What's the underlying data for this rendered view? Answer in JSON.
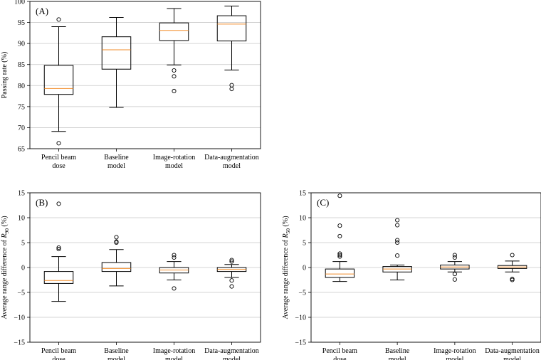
{
  "chart_data": [
    {
      "type": "box",
      "panel_label": "(A)",
      "ylabel": "Passing rate (%)",
      "ylim": [
        65,
        100
      ],
      "yticks": [
        65,
        70,
        75,
        80,
        85,
        90,
        95,
        100
      ],
      "grid": true,
      "categories": [
        "Pencil beam\ndose",
        "Baseline\nmodel",
        "Image-rotation\nmodel",
        "Data-augmentation\nmodel"
      ],
      "boxes": [
        {
          "whislo": 69.1,
          "q1": 77.9,
          "med": 79.3,
          "q3": 84.8,
          "whishi": 94.0,
          "fliers": [
            95.7,
            66.3
          ]
        },
        {
          "whislo": 74.8,
          "q1": 83.9,
          "med": 88.5,
          "q3": 91.6,
          "whishi": 96.2,
          "fliers": []
        },
        {
          "whislo": 84.9,
          "q1": 90.7,
          "med": 93.1,
          "q3": 94.9,
          "whishi": 98.3,
          "fliers": [
            83.6,
            82.2,
            78.7
          ]
        },
        {
          "whislo": 83.7,
          "q1": 90.6,
          "med": 94.6,
          "q3": 96.6,
          "whishi": 98.9,
          "fliers": [
            80.1,
            79.2
          ]
        }
      ]
    },
    {
      "type": "box",
      "panel_label": "(B)",
      "ylabel_prefix": "Average range difference of ",
      "ylabel_var": "R",
      "ylabel_sub": "90",
      "ylabel_suffix": " (%)",
      "ylim": [
        -15,
        15
      ],
      "yticks": [
        -15,
        -10,
        -5,
        0,
        5,
        10,
        15
      ],
      "grid": true,
      "categories": [
        "Pencil beam\ndose",
        "Baseline\nmodel",
        "Image-rotation\nmodel",
        "Data-augmentation\nmodel"
      ],
      "boxes": [
        {
          "whislo": -6.8,
          "q1": -3.2,
          "med": -2.6,
          "q3": -0.8,
          "whishi": 2.2,
          "fliers": [
            12.8,
            4.0,
            3.7
          ]
        },
        {
          "whislo": -3.7,
          "q1": -0.8,
          "med": -0.2,
          "q3": 1.0,
          "whishi": 3.6,
          "fliers": [
            6.1,
            5.2,
            5.0
          ]
        },
        {
          "whislo": -2.5,
          "q1": -1.1,
          "med": -0.5,
          "q3": 0.0,
          "whishi": 1.2,
          "fliers": [
            2.5,
            2.0,
            -4.2
          ]
        },
        {
          "whislo": -2.0,
          "q1": -0.8,
          "med": -0.4,
          "q3": 0.0,
          "whishi": 0.6,
          "fliers": [
            1.5,
            1.2,
            -2.6,
            -3.8
          ]
        }
      ]
    },
    {
      "type": "box",
      "panel_label": "(C)",
      "ylabel_prefix": "Average range difference of ",
      "ylabel_var": "R",
      "ylabel_sub": "50",
      "ylabel_suffix": " (%)",
      "ylim": [
        -15,
        15
      ],
      "yticks": [
        -15,
        -10,
        -5,
        0,
        5,
        10,
        15
      ],
      "grid": true,
      "categories": [
        "Pencil beam\ndose",
        "Baseline\nmodel",
        "Image-rotation\nmodel",
        "Data-augmentation\nmodel"
      ],
      "boxes": [
        {
          "whislo": -2.8,
          "q1": -2.0,
          "med": -1.3,
          "q3": -0.3,
          "whishi": 1.2,
          "fliers": [
            14.4,
            8.4,
            6.3,
            2.8,
            2.5,
            2.2
          ]
        },
        {
          "whislo": -2.5,
          "q1": -0.9,
          "med": -0.3,
          "q3": 0.2,
          "whishi": 0.5,
          "fliers": [
            9.5,
            8.5,
            5.5,
            5.0,
            2.4
          ]
        },
        {
          "whislo": -0.9,
          "q1": -0.3,
          "med": 0.1,
          "q3": 0.5,
          "whishi": 1.2,
          "fliers": [
            2.5,
            2.0,
            -1.3,
            -2.4
          ]
        },
        {
          "whislo": -0.9,
          "q1": -0.2,
          "med": 0.1,
          "q3": 0.4,
          "whishi": 1.3,
          "fliers": [
            2.5,
            -2.3,
            -2.5
          ]
        }
      ]
    }
  ]
}
